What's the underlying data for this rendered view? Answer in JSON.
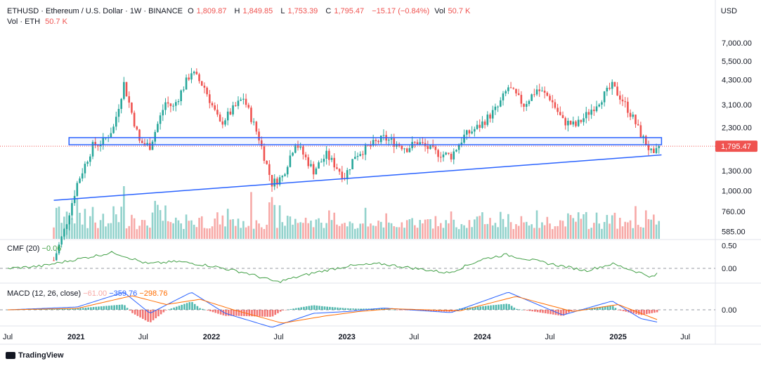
{
  "header": {
    "symbol": "ETHUSD · Ethereum / U.S. Dollar · 1W · BINANCE",
    "open_label": "O",
    "open": "1,809.87",
    "high_label": "H",
    "high": "1,849.85",
    "low_label": "L",
    "low": "1,753.39",
    "close_label": "C",
    "close": "1,795.47",
    "change": "−15.17 (−0.84%)",
    "vol_label": "Vol",
    "vol": "50.7 K",
    "vol_line_label": "Vol · ETH",
    "vol_line_value": "50.7 K"
  },
  "axis_unit": "USD",
  "price_tag": "1,795.47",
  "brand": "TradingView",
  "colors": {
    "up": "#26a69a",
    "down": "#ef5350",
    "line": "#2962ff",
    "macd": "#2962ff",
    "signal": "#ff6d00",
    "cmf": "#43a047"
  },
  "chart_data": [
    {
      "type": "candlestick",
      "title": "ETHUSD · Ethereum / U.S. Dollar · 1W · BINANCE",
      "y_scale": "log",
      "ylim": [
        530,
        8500
      ],
      "y_ticks": [
        "7,000.00",
        "5,500.00",
        "4,300.00",
        "3,100.00",
        "2,300.00",
        "1,300.00",
        "1,000.00",
        "760.00",
        "585.00"
      ],
      "y_tick_values": [
        7000,
        5500,
        4300,
        3100,
        2300,
        1300,
        1000,
        760,
        585
      ],
      "x_tick_labels": [
        "Jul",
        "2021",
        "Jul",
        "2022",
        "Jul",
        "2023",
        "Jul",
        "2024",
        "Jul",
        "2025",
        "Jul"
      ],
      "x_tick_dates": [
        "2020-07-01",
        "2021-01-01",
        "2021-07-01",
        "2022-01-01",
        "2022-07-01",
        "2023-01-01",
        "2023-07-01",
        "2024-01-01",
        "2024-07-01",
        "2025-01-01",
        "2025-07-01"
      ],
      "x_range": [
        "2020-06-10",
        "2025-09-20"
      ],
      "keypoints": [
        [
          "2020-11-02",
          400
        ],
        [
          "2020-12-01",
          600
        ],
        [
          "2021-01-04",
          1100
        ],
        [
          "2021-02-15",
          1800
        ],
        [
          "2021-03-15",
          1900
        ],
        [
          "2021-04-12",
          2300
        ],
        [
          "2021-05-10",
          4100
        ],
        [
          "2021-06-21",
          1900
        ],
        [
          "2021-07-19",
          1800
        ],
        [
          "2021-08-30",
          3200
        ],
        [
          "2021-09-20",
          3000
        ],
        [
          "2021-10-25",
          4200
        ],
        [
          "2021-11-08",
          4800
        ],
        [
          "2021-12-13",
          3900
        ],
        [
          "2022-01-24",
          2400
        ],
        [
          "2022-03-28",
          3400
        ],
        [
          "2022-05-09",
          2000
        ],
        [
          "2022-06-13",
          1100
        ],
        [
          "2022-07-11",
          1200
        ],
        [
          "2022-08-15",
          1900
        ],
        [
          "2022-10-03",
          1300
        ],
        [
          "2022-11-07",
          1600
        ],
        [
          "2022-12-26",
          1200
        ],
        [
          "2023-01-23",
          1600
        ],
        [
          "2023-04-10",
          2000
        ],
        [
          "2023-06-12",
          1750
        ],
        [
          "2023-07-10",
          1900
        ],
        [
          "2023-08-28",
          1650
        ],
        [
          "2023-10-09",
          1580
        ],
        [
          "2023-11-13",
          2050
        ],
        [
          "2023-12-25",
          2350
        ],
        [
          "2024-02-12",
          3000
        ],
        [
          "2024-03-11",
          3900
        ],
        [
          "2024-04-22",
          3100
        ],
        [
          "2024-05-27",
          3800
        ],
        [
          "2024-07-01",
          3400
        ],
        [
          "2024-08-05",
          2500
        ],
        [
          "2024-09-09",
          2350
        ],
        [
          "2024-09-30",
          2600
        ],
        [
          "2024-11-18",
          3400
        ],
        [
          "2024-12-16",
          3950
        ],
        [
          "2025-01-13",
          3300
        ],
        [
          "2025-02-10",
          2600
        ],
        [
          "2025-03-03",
          2100
        ],
        [
          "2025-04-07",
          1550
        ],
        [
          "2025-04-21",
          1795.47
        ]
      ],
      "last_close": 1795.47,
      "horizontal_zone": {
        "from": "2021-01-01",
        "to": "2025-04-28",
        "low": 1830,
        "high": 2010
      },
      "trendline": {
        "from": [
          "2020-11-02",
          880
        ],
        "to": [
          "2025-04-28",
          1600
        ]
      }
    },
    {
      "type": "bar",
      "title": "Vol · ETH",
      "description": "weekly volume bars colored by candle direction"
    },
    {
      "type": "line",
      "title": "CMF (20)",
      "value": "−0.06",
      "y_ticks": [
        "0.50",
        "0.00"
      ],
      "keypoints": [
        [
          "2020-07-01",
          0.0
        ],
        [
          "2020-10-01",
          0.05
        ],
        [
          "2021-01-04",
          0.2
        ],
        [
          "2021-04-12",
          0.35
        ],
        [
          "2021-07-12",
          0.1
        ],
        [
          "2021-10-04",
          0.15
        ],
        [
          "2022-01-03",
          0.05
        ],
        [
          "2022-04-04",
          -0.1
        ],
        [
          "2022-06-27",
          -0.3
        ],
        [
          "2022-10-03",
          -0.1
        ],
        [
          "2023-01-02",
          0.05
        ],
        [
          "2023-04-03",
          0.1
        ],
        [
          "2023-07-03",
          0.0
        ],
        [
          "2023-10-02",
          -0.1
        ],
        [
          "2024-01-01",
          0.2
        ],
        [
          "2024-03-04",
          0.3
        ],
        [
          "2024-07-01",
          0.1
        ],
        [
          "2024-10-07",
          -0.05
        ],
        [
          "2024-12-16",
          0.1
        ],
        [
          "2025-03-03",
          -0.1
        ],
        [
          "2025-04-07",
          -0.2
        ],
        [
          "2025-04-21",
          -0.06
        ]
      ]
    },
    {
      "type": "line",
      "title": "MACD (12, 26, close)",
      "values": {
        "histogram": "−61.00",
        "macd": "−359.76",
        "signal": "−298.76"
      },
      "y_ticks": [
        "0.00"
      ],
      "macd_keypoints": [
        [
          "2020-07-01",
          0
        ],
        [
          "2021-01-04",
          80
        ],
        [
          "2021-05-10",
          500
        ],
        [
          "2021-07-19",
          -100
        ],
        [
          "2021-11-08",
          500
        ],
        [
          "2022-02-07",
          -100
        ],
        [
          "2022-06-13",
          -500
        ],
        [
          "2022-10-03",
          -100
        ],
        [
          "2023-01-02",
          -50
        ],
        [
          "2023-04-10",
          50
        ],
        [
          "2023-10-09",
          -80
        ],
        [
          "2024-03-11",
          500
        ],
        [
          "2024-08-05",
          -150
        ],
        [
          "2024-12-16",
          250
        ],
        [
          "2025-03-03",
          -250
        ],
        [
          "2025-04-21",
          -359.76
        ]
      ],
      "signal_keypoints": [
        [
          "2020-07-01",
          0
        ],
        [
          "2021-01-04",
          40
        ],
        [
          "2021-06-01",
          400
        ],
        [
          "2021-09-01",
          150
        ],
        [
          "2021-12-01",
          300
        ],
        [
          "2022-03-01",
          0
        ],
        [
          "2022-07-11",
          -380
        ],
        [
          "2022-11-01",
          -180
        ],
        [
          "2023-02-01",
          -50
        ],
        [
          "2023-05-01",
          30
        ],
        [
          "2023-11-01",
          -30
        ],
        [
          "2024-04-01",
          380
        ],
        [
          "2024-09-01",
          -50
        ],
        [
          "2025-01-01",
          150
        ],
        [
          "2025-04-21",
          -298.76
        ]
      ]
    }
  ]
}
